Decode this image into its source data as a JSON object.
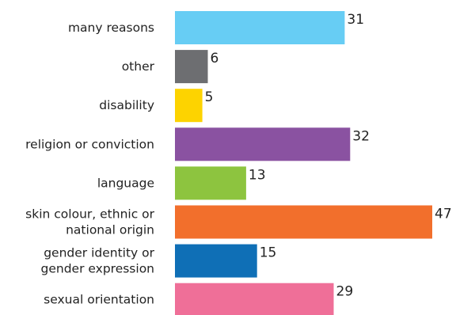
{
  "chart_data": {
    "type": "bar",
    "orientation": "horizontal",
    "title": "",
    "xlabel": "",
    "ylabel": "",
    "categories": [
      [
        "many reasons"
      ],
      [
        "other"
      ],
      [
        "disability"
      ],
      [
        "religion or conviction"
      ],
      [
        "language"
      ],
      [
        "skin colour, ethnic or",
        "national origin"
      ],
      [
        "gender identity or",
        "gender expression"
      ],
      [
        "sexual orientation"
      ]
    ],
    "values": [
      31,
      6,
      5,
      32,
      13,
      47,
      15,
      29
    ],
    "value_labels": [
      "31",
      "6",
      "5",
      "32",
      "13",
      "47",
      "15",
      "29"
    ],
    "colors": [
      "#67cdf4",
      "#6d6e71",
      "#fdd300",
      "#8a52a1",
      "#8dc43f",
      "#f26f2c",
      "#0f6fb6",
      "#ef6f98"
    ],
    "xlim": [
      0,
      47
    ],
    "grid": false,
    "legend": "none"
  }
}
